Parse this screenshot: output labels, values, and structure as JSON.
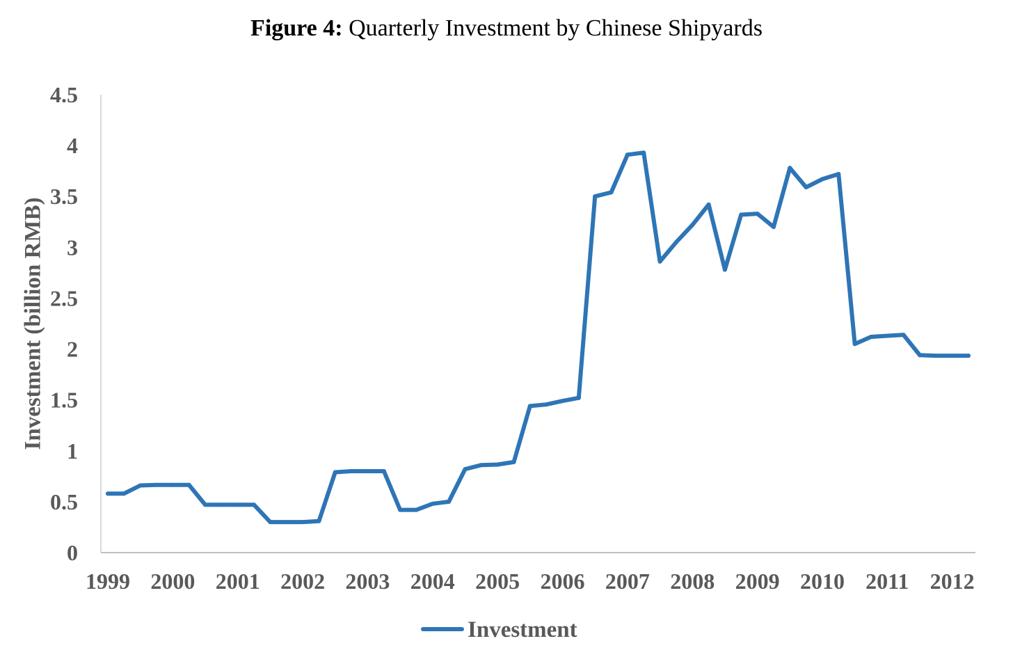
{
  "chart_data": {
    "type": "line",
    "title_prefix": "Figure 4:",
    "title": "Quarterly Investment by Chinese Shipyards",
    "xlabel": "",
    "ylabel": "Investment (billion RMB)",
    "ylim": [
      0,
      4.5
    ],
    "yticks": [
      "0",
      "0.5",
      "1",
      "1.5",
      "2",
      "2.5",
      "3",
      "3.5",
      "4",
      "4.5"
    ],
    "x_tick_labels": [
      "1999",
      "2000",
      "2001",
      "2002",
      "2003",
      "2004",
      "2005",
      "2006",
      "2007",
      "2008",
      "2009",
      "2010",
      "2011",
      "2012"
    ],
    "grid": false,
    "legend_position": "bottom",
    "line_color": "#2e75b6",
    "series": [
      {
        "name": "Investment",
        "x": [
          "1999-Q1",
          "1999-Q2",
          "1999-Q3",
          "1999-Q4",
          "2000-Q1",
          "2000-Q2",
          "2000-Q3",
          "2000-Q4",
          "2001-Q1",
          "2001-Q2",
          "2001-Q3",
          "2001-Q4",
          "2002-Q1",
          "2002-Q2",
          "2002-Q3",
          "2002-Q4",
          "2003-Q1",
          "2003-Q2",
          "2003-Q3",
          "2003-Q4",
          "2004-Q1",
          "2004-Q2",
          "2004-Q3",
          "2004-Q4",
          "2005-Q1",
          "2005-Q2",
          "2005-Q3",
          "2005-Q4",
          "2006-Q1",
          "2006-Q2",
          "2006-Q3",
          "2006-Q4",
          "2007-Q1",
          "2007-Q2",
          "2007-Q3",
          "2007-Q4",
          "2008-Q1",
          "2008-Q2",
          "2008-Q3",
          "2008-Q4",
          "2009-Q1",
          "2009-Q2",
          "2009-Q3",
          "2009-Q4",
          "2010-Q1",
          "2010-Q2",
          "2010-Q3",
          "2010-Q4",
          "2011-Q1",
          "2011-Q2",
          "2011-Q3",
          "2011-Q4",
          "2012-Q1",
          "2012-Q2"
        ],
        "values": [
          0.58,
          0.58,
          0.66,
          0.665,
          0.665,
          0.665,
          0.47,
          0.47,
          0.47,
          0.47,
          0.3,
          0.3,
          0.3,
          0.31,
          0.79,
          0.8,
          0.8,
          0.8,
          0.42,
          0.42,
          0.48,
          0.5,
          0.82,
          0.86,
          0.865,
          0.89,
          1.44,
          1.455,
          1.49,
          1.52,
          3.5,
          3.54,
          3.91,
          3.93,
          2.86,
          3.05,
          3.22,
          3.42,
          2.78,
          3.32,
          3.33,
          3.2,
          3.78,
          3.59,
          3.67,
          3.72,
          2.05,
          2.12,
          2.13,
          2.14,
          1.94,
          1.935,
          1.935,
          1.935
        ]
      }
    ]
  }
}
